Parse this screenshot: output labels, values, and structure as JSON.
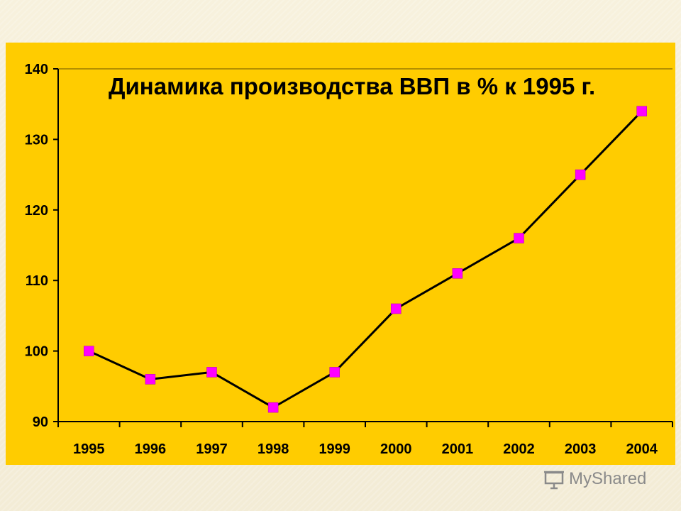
{
  "chart_data": {
    "type": "line",
    "title": "Динамика производства ВВП в % к 1995 г.",
    "x": [
      "1995",
      "1996",
      "1997",
      "1998",
      "1999",
      "2000",
      "2001",
      "2002",
      "2003",
      "2004"
    ],
    "series": [
      {
        "values": [
          100,
          96,
          97,
          92,
          97,
          106,
          111,
          116,
          125,
          134
        ],
        "color": "#000000",
        "marker_color": "#ff00ff"
      }
    ],
    "yticks": [
      90,
      100,
      110,
      120,
      130,
      140
    ],
    "ylim": [
      90,
      140
    ],
    "xlabel": "",
    "ylabel": "",
    "grid": false,
    "legend": "none",
    "background": "#ffcc00"
  },
  "watermark": {
    "text": "MyShared",
    "icon": "presentation-screen-icon"
  }
}
